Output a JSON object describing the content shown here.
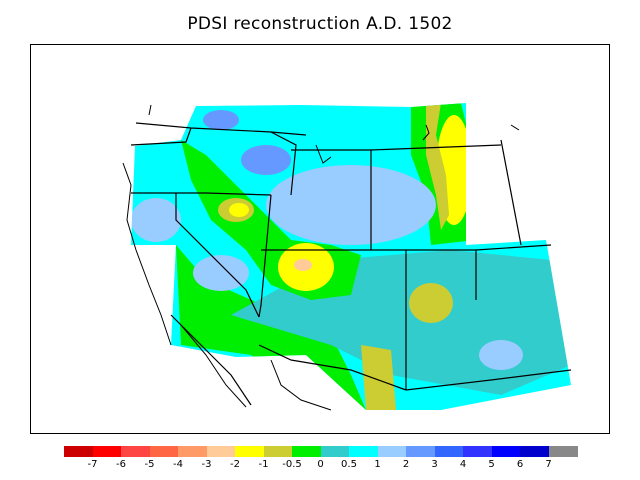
{
  "title": "PDSI reconstruction A.D. 1502",
  "colorbar": {
    "bins": [
      {
        "color": "#cc0000"
      },
      {
        "color": "#ff0000"
      },
      {
        "color": "#ff4444"
      },
      {
        "color": "#ff6644"
      },
      {
        "color": "#ff9966"
      },
      {
        "color": "#ffcc99"
      },
      {
        "color": "#ffff00"
      },
      {
        "color": "#cccc33"
      },
      {
        "color": "#00ee00"
      },
      {
        "color": "#33cccc"
      },
      {
        "color": "#00ffff"
      },
      {
        "color": "#99ccff"
      },
      {
        "color": "#6699ff"
      },
      {
        "color": "#3366ff"
      },
      {
        "color": "#3333ff"
      },
      {
        "color": "#0000ff"
      },
      {
        "color": "#0000cc"
      },
      {
        "color": "#888888"
      }
    ],
    "labels": [
      "-7",
      "-6",
      "-5",
      "-4",
      "-3",
      "-2",
      "-1",
      "-0.5",
      "0",
      "0.5",
      "1",
      "2",
      "3",
      "4",
      "5",
      "6",
      "7"
    ]
  },
  "palette": {
    "dry_strong": "#ffcc99",
    "dry": "#ffff00",
    "moderate_dry": "#cccc33",
    "near_normal_dry": "#00ee00",
    "near_normal_wet": "#33cccc",
    "wet": "#00ffff",
    "wetter": "#99ccff",
    "very_wet": "#6699ff",
    "boundary": "#000000"
  }
}
